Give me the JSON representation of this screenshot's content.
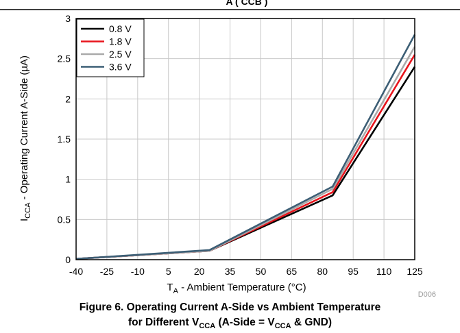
{
  "page_title": "Figure 6. Operating Current A-Side vs Ambient Temperature for Different V_CCA (A-Side = V_CCA & GND)",
  "caption": {
    "line1": "Figure 6. Operating Current A-Side vs Ambient Temperature",
    "line2_prefix": "for Different V",
    "line2_sub1": "CCA",
    "line2_mid": " (A-Side = V",
    "line2_sub2": "CCA",
    "line2_suffix": " & GND)"
  },
  "header_fragment": "A ( CCB          )",
  "figure_code": "D006",
  "chart_data": {
    "type": "line",
    "xlabel": "T_A - Ambient Temperature (°C)",
    "xlabel_parts": {
      "main": "T",
      "sub": "A",
      "rest": " - Ambient Temperature (°C)"
    },
    "ylabel": "I_CCA - Operating Current A-Side (µA)",
    "ylabel_parts": {
      "main": "I",
      "sub": "CCA",
      "rest": " - Operating Current A-Side (µA)"
    },
    "xlim": [
      -40,
      125
    ],
    "ylim": [
      0,
      3
    ],
    "xticks": [
      -40,
      -25,
      -10,
      5,
      20,
      35,
      50,
      65,
      80,
      95,
      110,
      125
    ],
    "yticks": [
      0,
      0.5,
      1,
      1.5,
      2,
      2.5,
      3
    ],
    "ytick_labels": [
      "0",
      "0.5",
      "1",
      "1.5",
      "2",
      "2.5",
      "3"
    ],
    "grid": true,
    "legend_position": "top-left",
    "x": [
      -40,
      25,
      85,
      125
    ],
    "series": [
      {
        "name": "0.8 V",
        "color": "#000000",
        "values": [
          0.01,
          0.11,
          0.8,
          2.4
        ]
      },
      {
        "name": "1.8 V",
        "color": "#e8141c",
        "values": [
          0.01,
          0.11,
          0.84,
          2.55
        ]
      },
      {
        "name": "2.5 V",
        "color": "#aaaaaa",
        "values": [
          0.01,
          0.11,
          0.88,
          2.65
        ]
      },
      {
        "name": "3.6 V",
        "color": "#3c5e75",
        "values": [
          0.01,
          0.12,
          0.91,
          2.8
        ]
      }
    ]
  }
}
